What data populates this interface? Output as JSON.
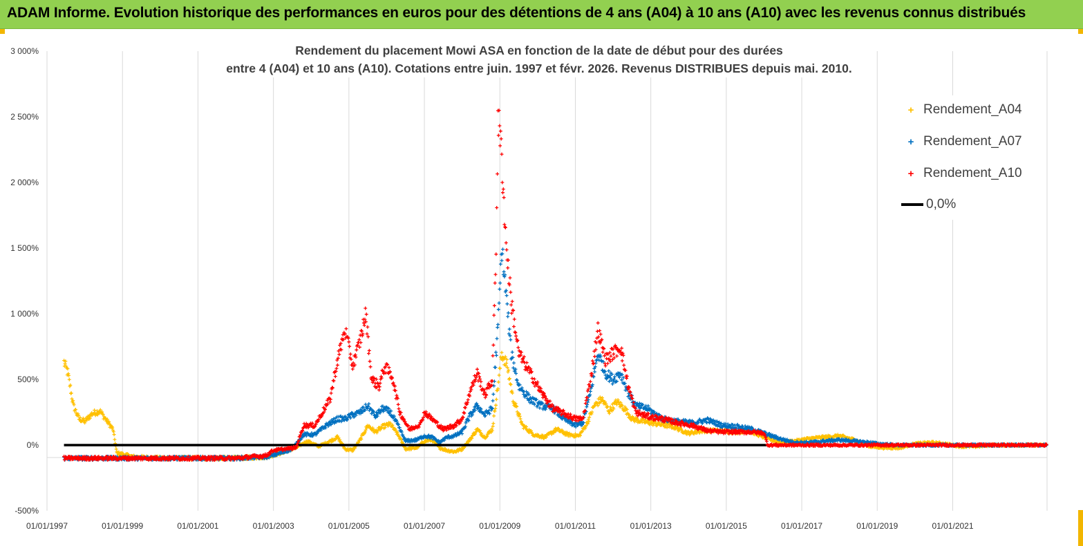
{
  "banner": {
    "title": "ADAM Informe. Evolution historique des performances en euros pour des détentions de 4 ans (A04) à 10 ans (A10) avec les revenus connus distribués"
  },
  "colors": {
    "banner_bg": "#92d050",
    "A04": "#ffc000",
    "A07": "#0070c0",
    "A10": "#ff0000",
    "zero_line": "#000000"
  },
  "chart_data": {
    "type": "scatter",
    "title_line1": "Rendement du placement Mowi ASA en fonction de la date de début pour des durées",
    "title_line2": "entre 4 (A04) et 10 ans (A10). Cotations entre juin. 1997 et févr. 2026. Revenus DISTRIBUES depuis mai. 2010.",
    "x_ticks": [
      "01/01/1997",
      "01/01/1999",
      "01/01/2001",
      "01/01/2003",
      "01/01/2005",
      "01/01/2007",
      "01/01/2009",
      "01/01/2011",
      "01/01/2013",
      "01/01/2015",
      "01/01/2017",
      "01/01/2019",
      "01/01/2021"
    ],
    "xlim": [
      1997.0,
      2023.5
    ],
    "y_ticks": [
      "3 000%",
      "2 500%",
      "2 000%",
      "1 500%",
      "1 000%",
      "500%",
      "0%",
      "-500%"
    ],
    "ylim": [
      -500,
      3000
    ],
    "grid": "vertical",
    "legend_position": "top-right",
    "series": [
      {
        "name": "Rendement_A04",
        "marker": "+",
        "color": "#ffc000",
        "points": [
          [
            1997.45,
            630
          ],
          [
            1997.55,
            550
          ],
          [
            1997.7,
            300
          ],
          [
            1997.85,
            200
          ],
          [
            1998.0,
            180
          ],
          [
            1998.2,
            240
          ],
          [
            1998.4,
            260
          ],
          [
            1998.6,
            180
          ],
          [
            1998.75,
            120
          ],
          [
            1998.85,
            -60
          ],
          [
            1999.0,
            -70
          ],
          [
            1999.3,
            -90
          ],
          [
            2000,
            -100
          ],
          [
            2001,
            -100
          ],
          [
            2002,
            -100
          ],
          [
            2002.8,
            -90
          ],
          [
            2003.2,
            -60
          ],
          [
            2003.6,
            -20
          ],
          [
            2003.9,
            30
          ],
          [
            2004.2,
            -10
          ],
          [
            2004.5,
            30
          ],
          [
            2004.7,
            60
          ],
          [
            2004.9,
            -30
          ],
          [
            2005.1,
            -40
          ],
          [
            2005.3,
            40
          ],
          [
            2005.5,
            150
          ],
          [
            2005.7,
            100
          ],
          [
            2005.9,
            140
          ],
          [
            2006.1,
            160
          ],
          [
            2006.3,
            80
          ],
          [
            2006.5,
            -30
          ],
          [
            2006.8,
            -20
          ],
          [
            2007.0,
            30
          ],
          [
            2007.2,
            40
          ],
          [
            2007.4,
            -20
          ],
          [
            2007.6,
            -40
          ],
          [
            2007.8,
            -50
          ],
          [
            2008.0,
            -30
          ],
          [
            2008.2,
            40
          ],
          [
            2008.4,
            120
          ],
          [
            2008.6,
            60
          ],
          [
            2008.8,
            120
          ],
          [
            2008.95,
            450
          ],
          [
            2009.05,
            700
          ],
          [
            2009.2,
            600
          ],
          [
            2009.35,
            350
          ],
          [
            2009.6,
            150
          ],
          [
            2009.9,
            80
          ],
          [
            2010.2,
            60
          ],
          [
            2010.5,
            120
          ],
          [
            2010.8,
            80
          ],
          [
            2011.1,
            70
          ],
          [
            2011.3,
            160
          ],
          [
            2011.5,
            300
          ],
          [
            2011.7,
            350
          ],
          [
            2011.9,
            260
          ],
          [
            2012.1,
            330
          ],
          [
            2012.3,
            280
          ],
          [
            2012.5,
            200
          ],
          [
            2012.8,
            180
          ],
          [
            2013.2,
            160
          ],
          [
            2013.6,
            140
          ],
          [
            2014.0,
            90
          ],
          [
            2014.4,
            110
          ],
          [
            2014.8,
            110
          ],
          [
            2015.2,
            100
          ],
          [
            2015.6,
            110
          ],
          [
            2016.0,
            60
          ],
          [
            2016.4,
            20
          ],
          [
            2016.8,
            30
          ],
          [
            2017.2,
            50
          ],
          [
            2017.6,
            60
          ],
          [
            2018.0,
            70
          ],
          [
            2018.4,
            40
          ],
          [
            2018.8,
            -10
          ],
          [
            2019.2,
            -20
          ],
          [
            2019.6,
            -20
          ],
          [
            2020.0,
            10
          ],
          [
            2020.4,
            20
          ],
          [
            2020.8,
            10
          ],
          [
            2021.2,
            -10
          ],
          [
            2021.6,
            -10
          ],
          [
            2022.0,
            0
          ],
          [
            2022.6,
            0
          ],
          [
            2023.5,
            0
          ]
        ]
      },
      {
        "name": "Rendement_A07",
        "marker": "+",
        "color": "#0070c0",
        "points": [
          [
            1997.45,
            -100
          ],
          [
            1998,
            -100
          ],
          [
            1999,
            -100
          ],
          [
            2000,
            -100
          ],
          [
            2001,
            -100
          ],
          [
            2002,
            -100
          ],
          [
            2002.8,
            -90
          ],
          [
            2003.2,
            -60
          ],
          [
            2003.5,
            -30
          ],
          [
            2003.8,
            80
          ],
          [
            2004.1,
            80
          ],
          [
            2004.4,
            150
          ],
          [
            2004.7,
            200
          ],
          [
            2004.9,
            200
          ],
          [
            2005.1,
            230
          ],
          [
            2005.3,
            250
          ],
          [
            2005.5,
            300
          ],
          [
            2005.7,
            220
          ],
          [
            2005.9,
            280
          ],
          [
            2006.1,
            250
          ],
          [
            2006.3,
            150
          ],
          [
            2006.5,
            30
          ],
          [
            2006.8,
            40
          ],
          [
            2007.0,
            70
          ],
          [
            2007.2,
            60
          ],
          [
            2007.4,
            20
          ],
          [
            2007.6,
            60
          ],
          [
            2007.8,
            70
          ],
          [
            2008.0,
            100
          ],
          [
            2008.2,
            220
          ],
          [
            2008.4,
            300
          ],
          [
            2008.6,
            230
          ],
          [
            2008.8,
            280
          ],
          [
            2008.95,
            900
          ],
          [
            2009.05,
            1500
          ],
          [
            2009.15,
            1200
          ],
          [
            2009.3,
            700
          ],
          [
            2009.5,
            450
          ],
          [
            2009.8,
            350
          ],
          [
            2010.1,
            300
          ],
          [
            2010.4,
            280
          ],
          [
            2010.7,
            200
          ],
          [
            2011.0,
            150
          ],
          [
            2011.2,
            170
          ],
          [
            2011.4,
            400
          ],
          [
            2011.6,
            700
          ],
          [
            2011.8,
            550
          ],
          [
            2012.0,
            500
          ],
          [
            2012.2,
            550
          ],
          [
            2012.4,
            400
          ],
          [
            2012.6,
            300
          ],
          [
            2012.9,
            280
          ],
          [
            2013.3,
            200
          ],
          [
            2013.7,
            180
          ],
          [
            2014.1,
            170
          ],
          [
            2014.5,
            190
          ],
          [
            2014.9,
            150
          ],
          [
            2015.3,
            140
          ],
          [
            2015.7,
            120
          ],
          [
            2016.0,
            90
          ],
          [
            2016.4,
            50
          ],
          [
            2016.8,
            20
          ],
          [
            2017.2,
            20
          ],
          [
            2017.6,
            30
          ],
          [
            2018.0,
            40
          ],
          [
            2018.4,
            30
          ],
          [
            2018.8,
            20
          ],
          [
            2019.0,
            10
          ],
          [
            2019.5,
            0
          ],
          [
            2020.5,
            0
          ],
          [
            2021.5,
            0
          ],
          [
            2022.5,
            0
          ],
          [
            2023.5,
            0
          ]
        ]
      },
      {
        "name": "Rendement_A10",
        "marker": "+",
        "color": "#ff0000",
        "points": [
          [
            1997.45,
            -100
          ],
          [
            1998,
            -100
          ],
          [
            1999,
            -100
          ],
          [
            2000,
            -100
          ],
          [
            2001,
            -100
          ],
          [
            2002,
            -100
          ],
          [
            2002.8,
            -80
          ],
          [
            2003.0,
            -40
          ],
          [
            2003.3,
            -30
          ],
          [
            2003.6,
            -20
          ],
          [
            2003.8,
            150
          ],
          [
            2004.1,
            150
          ],
          [
            2004.3,
            250
          ],
          [
            2004.5,
            350
          ],
          [
            2004.7,
            650
          ],
          [
            2004.9,
            880
          ],
          [
            2005.1,
            600
          ],
          [
            2005.3,
            800
          ],
          [
            2005.45,
            1000
          ],
          [
            2005.6,
            500
          ],
          [
            2005.8,
            450
          ],
          [
            2005.95,
            600
          ],
          [
            2006.15,
            520
          ],
          [
            2006.35,
            250
          ],
          [
            2006.6,
            120
          ],
          [
            2006.9,
            160
          ],
          [
            2007.0,
            250
          ],
          [
            2007.2,
            200
          ],
          [
            2007.5,
            120
          ],
          [
            2007.8,
            150
          ],
          [
            2008.0,
            200
          ],
          [
            2008.2,
            400
          ],
          [
            2008.4,
            550
          ],
          [
            2008.6,
            380
          ],
          [
            2008.8,
            500
          ],
          [
            2008.9,
            1500
          ],
          [
            2008.95,
            2500
          ],
          [
            2009.05,
            2200
          ],
          [
            2009.15,
            1600
          ],
          [
            2009.3,
            1100
          ],
          [
            2009.5,
            700
          ],
          [
            2009.8,
            550
          ],
          [
            2010.1,
            400
          ],
          [
            2010.4,
            280
          ],
          [
            2010.7,
            240
          ],
          [
            2011.0,
            200
          ],
          [
            2011.2,
            200
          ],
          [
            2011.4,
            500
          ],
          [
            2011.6,
            880
          ],
          [
            2011.8,
            650
          ],
          [
            2012.0,
            700
          ],
          [
            2012.2,
            750
          ],
          [
            2012.4,
            450
          ],
          [
            2012.6,
            250
          ],
          [
            2012.9,
            220
          ],
          [
            2013.3,
            200
          ],
          [
            2013.7,
            170
          ],
          [
            2014.1,
            150
          ],
          [
            2014.5,
            110
          ],
          [
            2014.9,
            100
          ],
          [
            2015.3,
            100
          ],
          [
            2015.7,
            100
          ],
          [
            2016.0,
            90
          ],
          [
            2016.1,
            0
          ],
          [
            2017,
            0
          ],
          [
            2018,
            0
          ],
          [
            2019,
            0
          ],
          [
            2020,
            0
          ],
          [
            2021,
            0
          ],
          [
            2022,
            0
          ],
          [
            2023.5,
            0
          ]
        ]
      }
    ],
    "reference_lines": [
      {
        "name": "0,0%",
        "y": 0,
        "x_from": 1997.45,
        "x_to": 2016.1,
        "color": "#000000"
      }
    ],
    "legend": [
      {
        "label": "Rendement_A04",
        "color": "#ffc000",
        "symbol": "+"
      },
      {
        "label": "Rendement_A07",
        "color": "#0070c0",
        "symbol": "+"
      },
      {
        "label": "Rendement_A10",
        "color": "#ff0000",
        "symbol": "+"
      },
      {
        "label": "0,0%",
        "color": "#000000",
        "symbol": "line"
      }
    ]
  }
}
